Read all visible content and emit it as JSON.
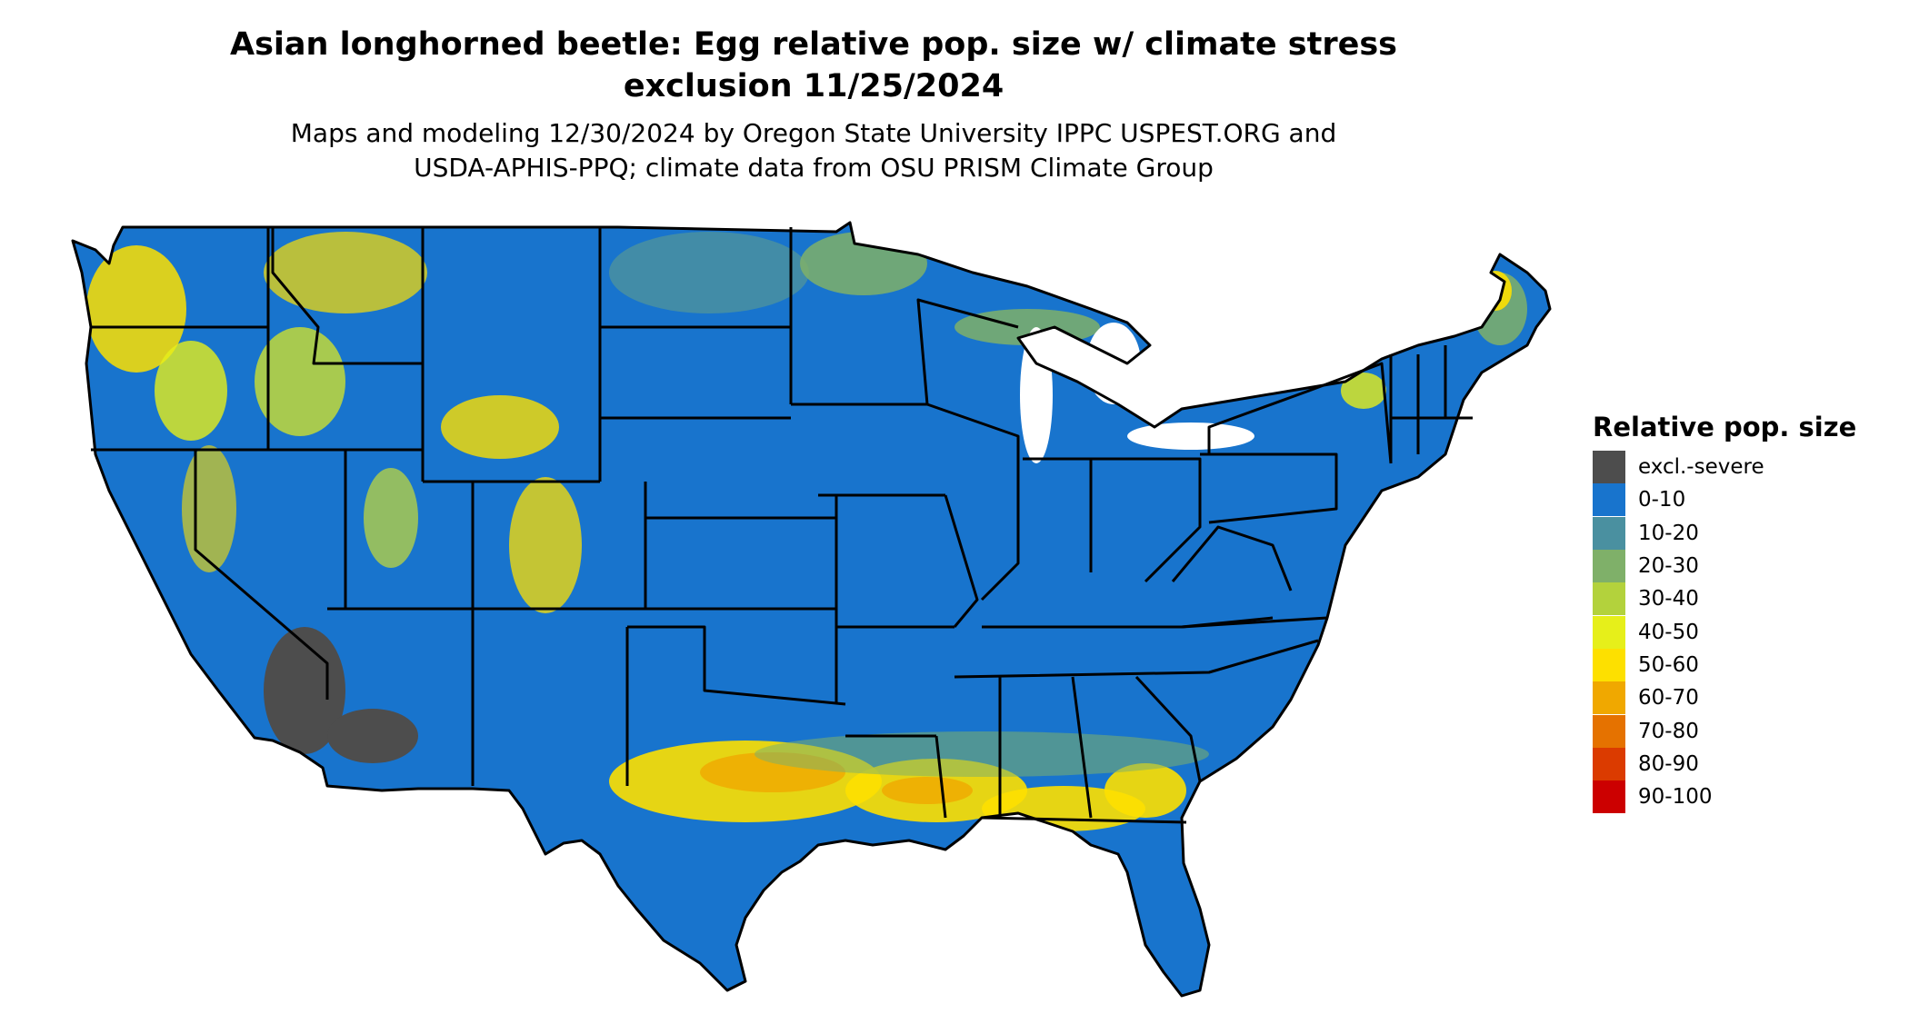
{
  "title_line1": "Asian longhorned beetle: Egg relative pop. size w/ climate stress",
  "title_line2": "exclusion 11/25/2024",
  "subtitle_line1": "Maps and modeling 12/30/2024 by Oregon State University IPPC USPEST.ORG and",
  "subtitle_line2": "USDA-APHIS-PPQ; climate data from OSU PRISM Climate Group",
  "legend": {
    "title": "Relative pop. size",
    "items": [
      {
        "label": "excl.-severe",
        "color": "#4d4d4d"
      },
      {
        "label": "0-10",
        "color": "#1874cd"
      },
      {
        "label": "10-20",
        "color": "#4a90a0"
      },
      {
        "label": "20-30",
        "color": "#7fb069"
      },
      {
        "label": "30-40",
        "color": "#b3d23c"
      },
      {
        "label": "40-50",
        "color": "#e6ef1a"
      },
      {
        "label": "50-60",
        "color": "#fde000"
      },
      {
        "label": "60-70",
        "color": "#f0a800"
      },
      {
        "label": "70-80",
        "color": "#e57200"
      },
      {
        "label": "80-90",
        "color": "#db3b00"
      },
      {
        "label": "90-100",
        "color": "#cc0000"
      }
    ]
  }
}
